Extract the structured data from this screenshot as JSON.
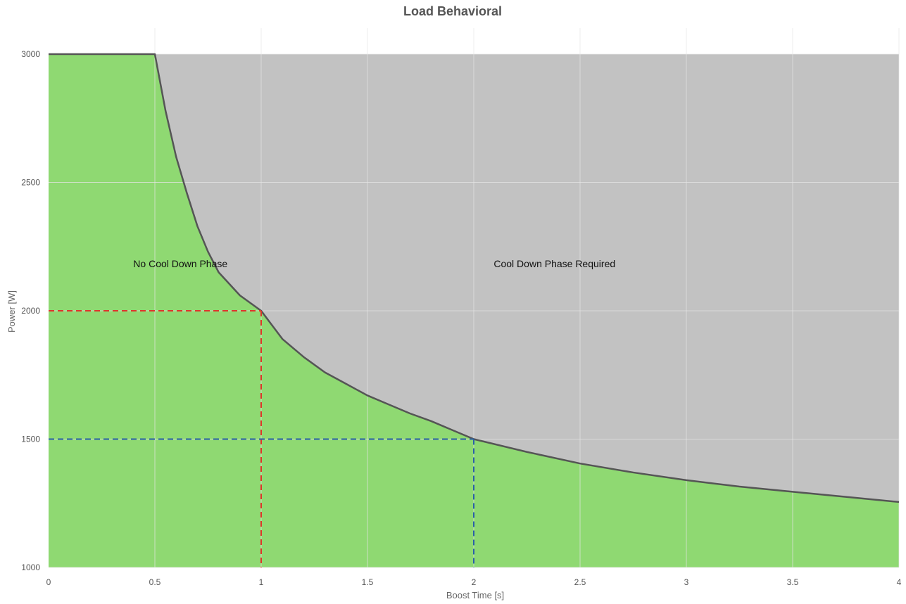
{
  "chart_data": {
    "type": "area",
    "title": "Load Behavioral",
    "xlabel": "Boost Time [s]",
    "ylabel": "Power [W]",
    "xlim": [
      0,
      4
    ],
    "ylim": [
      1000,
      3000
    ],
    "x_ticks": [
      0,
      0.5,
      1,
      1.5,
      2,
      2.5,
      3,
      3.5,
      4
    ],
    "x_tick_labels": [
      "0",
      "0.5",
      "1",
      "1.5",
      "2",
      "2.5",
      "3",
      "3.5",
      "4"
    ],
    "y_ticks": [
      1000,
      1500,
      2000,
      2500,
      3000
    ],
    "y_tick_labels": [
      "1000",
      "1500",
      "2000",
      "2500",
      "3000"
    ],
    "grid": true,
    "series": [
      {
        "x": [
          0,
          0.5,
          0.55,
          0.6,
          0.65,
          0.7,
          0.75,
          0.8,
          0.9,
          1,
          1.1,
          1.2,
          1.3,
          1.4,
          1.5,
          1.6,
          1.7,
          1.8,
          1.9,
          2,
          2.25,
          2.5,
          2.75,
          3,
          3.25,
          3.5,
          3.75,
          4
        ],
        "y": [
          3000,
          3000,
          2780,
          2600,
          2460,
          2330,
          2230,
          2150,
          2060,
          2000,
          1890,
          1820,
          1760,
          1715,
          1670,
          1635,
          1600,
          1570,
          1535,
          1500,
          1450,
          1405,
          1370,
          1340,
          1315,
          1295,
          1275,
          1255
        ]
      }
    ],
    "regions": [
      {
        "label": "No Cool Down Phase",
        "color": "#8fd972",
        "x": 0.62,
        "y": 2170
      },
      {
        "label": "Cool Down Phase Required",
        "color": "#c2c2c2",
        "x": 2.38,
        "y": 2170
      }
    ],
    "reference_lines": [
      {
        "x": 1,
        "y": 2000,
        "color": "#e0352b"
      },
      {
        "x": 2,
        "y": 1500,
        "color": "#2a5fa8"
      }
    ],
    "curve_color": "#555555",
    "grid_color": "#e5e5e5"
  }
}
